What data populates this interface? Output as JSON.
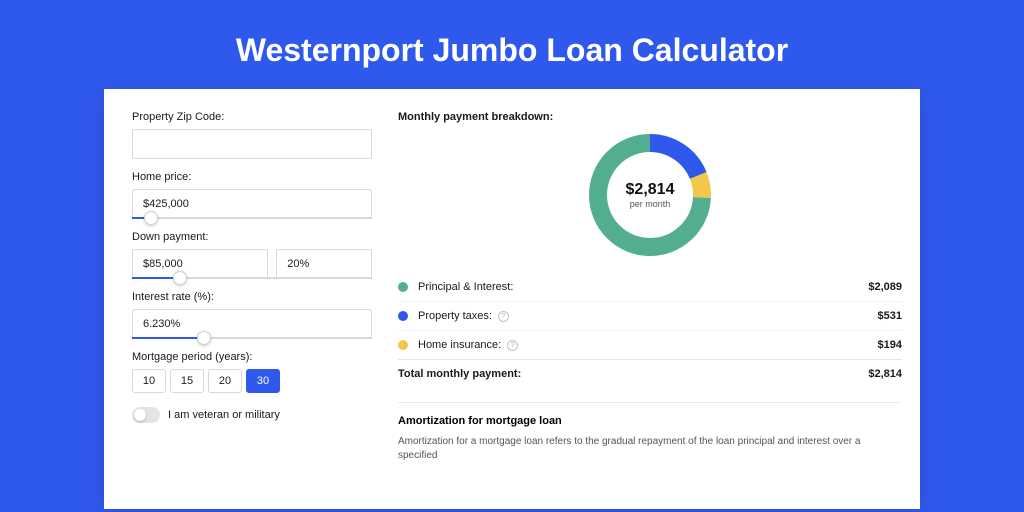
{
  "page": {
    "title": "Westernport Jumbo Loan Calculator",
    "bg_color": "#2f59ed",
    "card_bg": "#ffffff"
  },
  "form": {
    "zip": {
      "label": "Property Zip Code:",
      "value": ""
    },
    "price": {
      "label": "Home price:",
      "value": "$425,000",
      "slider_pct": 8
    },
    "down": {
      "label": "Down payment:",
      "amount": "$85,000",
      "percent": "20%",
      "slider_pct": 20
    },
    "rate": {
      "label": "Interest rate (%):",
      "value": "6.230%",
      "slider_pct": 30
    },
    "period": {
      "label": "Mortgage period (years):",
      "options": [
        "10",
        "15",
        "20",
        "30"
      ],
      "selected": "30"
    },
    "veteran": {
      "label": "I am veteran or military",
      "checked": false
    }
  },
  "breakdown": {
    "title": "Monthly payment breakdown:",
    "center_value": "$2,814",
    "center_sub": "per month",
    "items": [
      {
        "label": "Principal & Interest:",
        "amount": "$2,089",
        "value": 2089,
        "color": "#53ae8f",
        "info": false
      },
      {
        "label": "Property taxes:",
        "amount": "$531",
        "value": 531,
        "color": "#2f59ed",
        "info": true
      },
      {
        "label": "Home insurance:",
        "amount": "$194",
        "value": 194,
        "color": "#f1c84b",
        "info": true
      }
    ],
    "total": {
      "label": "Total monthly payment:",
      "amount": "$2,814"
    },
    "donut": {
      "stroke_width": 18,
      "radius": 52,
      "bg": "#ffffff"
    }
  },
  "amortization": {
    "title": "Amortization for mortgage loan",
    "body": "Amortization for a mortgage loan refers to the gradual repayment of the loan principal and interest over a specified"
  }
}
